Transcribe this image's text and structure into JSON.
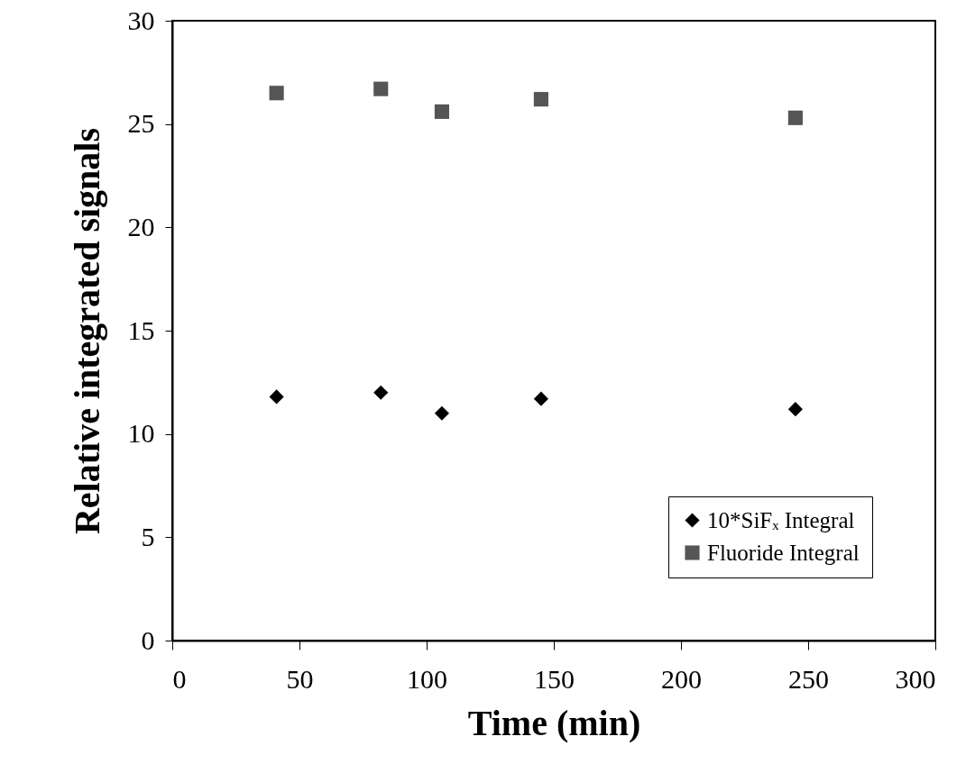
{
  "chart_data": {
    "type": "scatter",
    "xlabel": "Time (min)",
    "ylabel": "Relative integrated signals",
    "xlim": [
      0,
      300
    ],
    "xticks": [
      0,
      50,
      100,
      150,
      200,
      250,
      300
    ],
    "ylim": [
      0,
      30
    ],
    "yticks": [
      0,
      5,
      10,
      15,
      20,
      25,
      30
    ],
    "x": [
      41,
      82,
      106,
      145,
      245
    ],
    "series": [
      {
        "name": "10*SiFₓ Integral",
        "color": "#000000",
        "marker": "diamond",
        "values": [
          11.8,
          12.0,
          11.0,
          11.7,
          11.2
        ]
      },
      {
        "name": "Fluoride Integral",
        "color": "#555555",
        "marker": "square",
        "values": [
          26.5,
          26.7,
          25.6,
          26.2,
          25.3
        ]
      }
    ],
    "legend": "bottom right",
    "grid": false
  }
}
